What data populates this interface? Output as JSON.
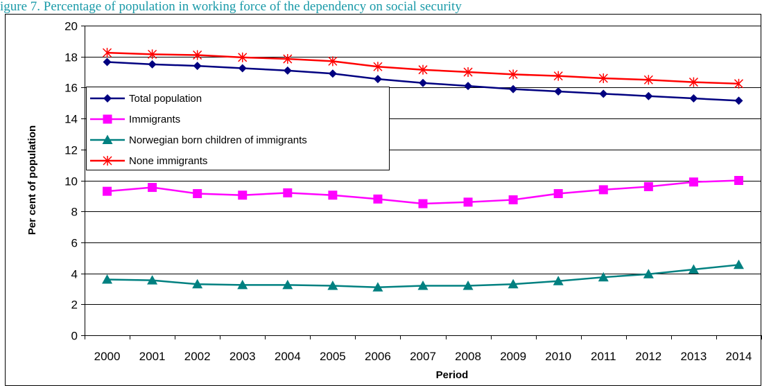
{
  "caption": "igure 7. Percentage of population in working force of the dependency on social security",
  "chart_data": {
    "type": "line",
    "xlabel": "Period",
    "ylabel": "Per cent of population",
    "ylim": [
      0,
      20
    ],
    "ytick_step": 2,
    "grid": "horizontal",
    "legend": "upper-left",
    "categories": [
      "2000",
      "2001",
      "2002",
      "2003",
      "2004",
      "2005",
      "2006",
      "2007",
      "2008",
      "2009",
      "2010",
      "2011",
      "2012",
      "2013",
      "2014"
    ],
    "series": [
      {
        "name": "Total population",
        "color": "#000080",
        "marker": "diamond",
        "values": [
          17.65,
          17.5,
          17.4,
          17.25,
          17.1,
          16.9,
          16.55,
          16.3,
          16.1,
          15.9,
          15.75,
          15.6,
          15.45,
          15.3,
          15.15
        ]
      },
      {
        "name": "Immigrants",
        "color": "#ff00ff",
        "marker": "square",
        "values": [
          9.3,
          9.55,
          9.15,
          9.05,
          9.2,
          9.05,
          8.8,
          8.5,
          8.6,
          8.75,
          9.15,
          9.4,
          9.6,
          9.9,
          10.0
        ]
      },
      {
        "name": "Norwegian born children of immigrants",
        "color": "#008080",
        "marker": "triangle",
        "values": [
          3.6,
          3.55,
          3.3,
          3.25,
          3.25,
          3.2,
          3.1,
          3.2,
          3.2,
          3.3,
          3.5,
          3.75,
          3.95,
          4.25,
          4.55
        ]
      },
      {
        "name": "None immigrants",
        "color": "#ff0000",
        "marker": "star",
        "values": [
          18.25,
          18.15,
          18.1,
          17.95,
          17.85,
          17.7,
          17.35,
          17.15,
          17.0,
          16.85,
          16.75,
          16.6,
          16.5,
          16.35,
          16.25
        ]
      }
    ]
  }
}
